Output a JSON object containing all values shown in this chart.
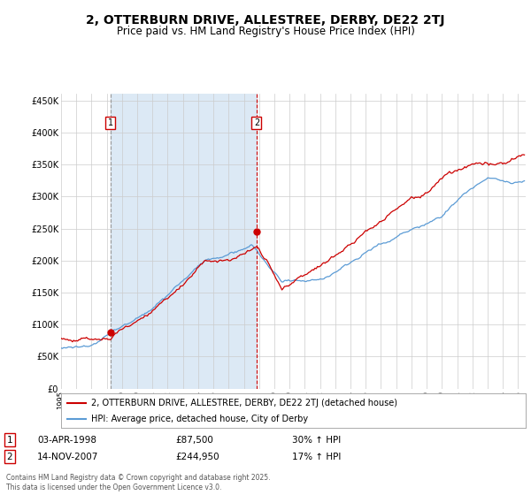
{
  "title": "2, OTTERBURN DRIVE, ALLESTREE, DERBY, DE22 2TJ",
  "subtitle": "Price paid vs. HM Land Registry's House Price Index (HPI)",
  "ylabel_ticks": [
    "£0",
    "£50K",
    "£100K",
    "£150K",
    "£200K",
    "£250K",
    "£300K",
    "£350K",
    "£400K",
    "£450K"
  ],
  "ytick_vals": [
    0,
    50000,
    100000,
    150000,
    200000,
    250000,
    300000,
    350000,
    400000,
    450000
  ],
  "ylim": [
    0,
    460000
  ],
  "legend_line1": "2, OTTERBURN DRIVE, ALLESTREE, DERBY, DE22 2TJ (detached house)",
  "legend_line2": "HPI: Average price, detached house, City of Derby",
  "transaction1_date": "03-APR-1998",
  "transaction1_price": 87500,
  "transaction1_label": "1",
  "transaction1_hpi": "30% ↑ HPI",
  "transaction2_date": "14-NOV-2007",
  "transaction2_price": 244950,
  "transaction2_label": "2",
  "transaction2_hpi": "17% ↑ HPI",
  "copyright": "Contains HM Land Registry data © Crown copyright and database right 2025.\nThis data is licensed under the Open Government Licence v3.0.",
  "red_color": "#cc0000",
  "blue_color": "#5b9bd5",
  "shade_color": "#dce9f5",
  "vline1_color": "#aaaaaa",
  "vline2_color": "#cc0000",
  "background_color": "#ffffff",
  "grid_color": "#cccccc",
  "title_fontsize": 10,
  "subtitle_fontsize": 8.5
}
